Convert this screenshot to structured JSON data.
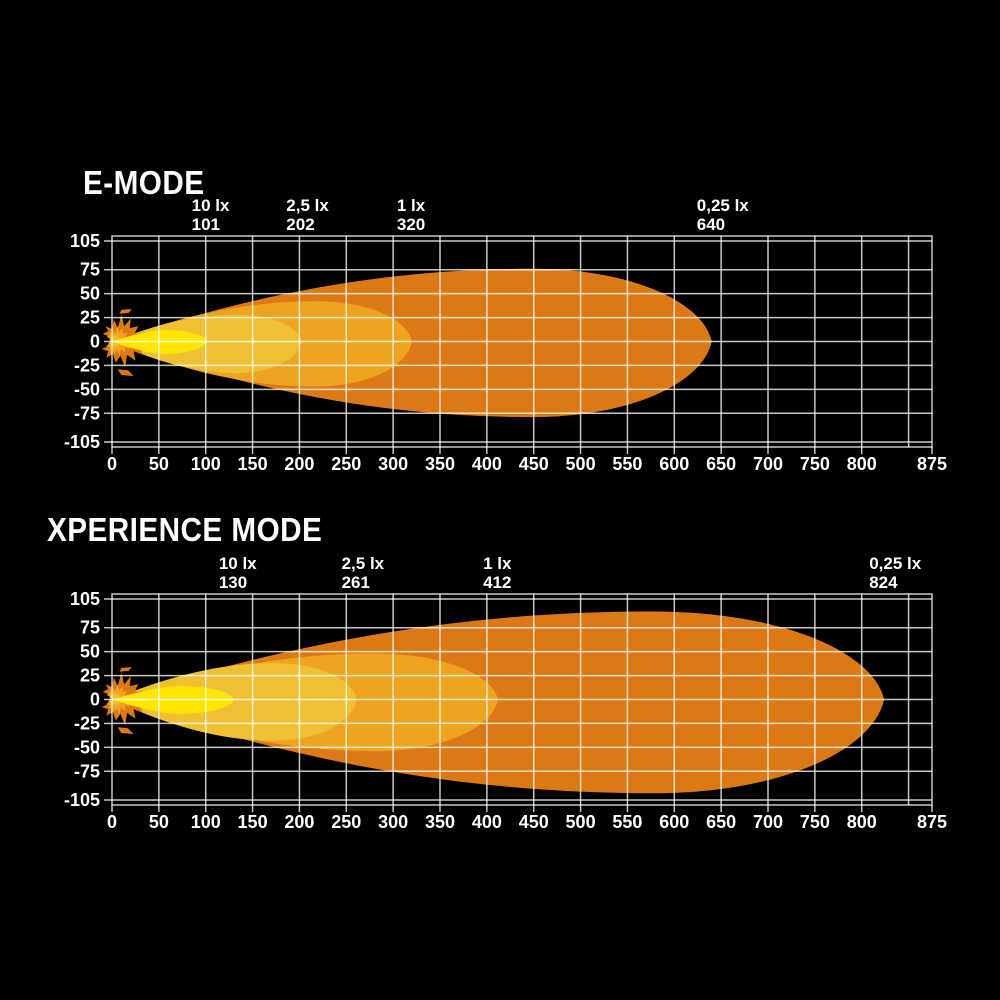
{
  "page": {
    "background": "#000000",
    "text_color": "#FFFFFF",
    "grid_color": "#FFFFFF",
    "grid_opacity": 0.78
  },
  "chart_data": [
    {
      "type": "area",
      "title": "E-MODE",
      "xlim": [
        0,
        875
      ],
      "ylim": [
        -105,
        105
      ],
      "grid": true,
      "x_ticks": [
        0,
        50,
        100,
        150,
        200,
        250,
        300,
        350,
        400,
        450,
        500,
        550,
        600,
        650,
        700,
        750,
        800,
        875
      ],
      "y_ticks": [
        105,
        75,
        50,
        25,
        0,
        -25,
        -50,
        -75,
        -105
      ],
      "annotations": [
        {
          "lux": "10 lx",
          "distance": 101
        },
        {
          "lux": "2,5 lx",
          "distance": 202
        },
        {
          "lux": "1 lx",
          "distance": 320
        },
        {
          "lux": "0,25 lx",
          "distance": 640
        }
      ],
      "beams": [
        {
          "name": "0-25lx-zone",
          "lux": "0,25 lx",
          "reach": 640,
          "half_width_top": 76,
          "half_width_bottom": 79,
          "peak": 0.7,
          "color": "#DD7914"
        },
        {
          "name": "1lx-zone",
          "lux": "1 lx",
          "reach": 320,
          "half_width_top": 42,
          "half_width_bottom": 47,
          "peak": 0.68,
          "color": "#EFA41F"
        },
        {
          "name": "2-5lx-zone",
          "lux": "2,5 lx",
          "reach": 202,
          "half_width_top": 28,
          "half_width_bottom": 33,
          "peak": 0.66,
          "color": "#EFC132"
        },
        {
          "name": "10lx-zone",
          "lux": "10 lx",
          "reach": 101,
          "half_width_top": 12,
          "half_width_bottom": 13,
          "peak": 0.55,
          "color": "#FFE500"
        }
      ],
      "light_source_colors": [
        "#DD7914",
        "#EFA41F",
        "#EFC132"
      ]
    },
    {
      "type": "area",
      "title": "XPERIENCE MODE",
      "xlim": [
        0,
        875
      ],
      "ylim": [
        -105,
        105
      ],
      "grid": true,
      "x_ticks": [
        0,
        50,
        100,
        150,
        200,
        250,
        300,
        350,
        400,
        450,
        500,
        550,
        600,
        650,
        700,
        750,
        800,
        875
      ],
      "y_ticks": [
        105,
        75,
        50,
        25,
        0,
        -25,
        -50,
        -75,
        -105
      ],
      "annotations": [
        {
          "lux": "10 lx",
          "distance": 130
        },
        {
          "lux": "2,5 lx",
          "distance": 261
        },
        {
          "lux": "1 lx",
          "distance": 412
        },
        {
          "lux": "0,25 lx",
          "distance": 824
        }
      ],
      "beams": [
        {
          "name": "0-25lx-zone",
          "lux": "0,25 lx",
          "reach": 824,
          "half_width_top": 92,
          "half_width_bottom": 98,
          "peak": 0.7,
          "color": "#DD7914"
        },
        {
          "name": "1lx-zone",
          "lux": "1 lx",
          "reach": 412,
          "half_width_top": 48,
          "half_width_bottom": 54,
          "peak": 0.68,
          "color": "#EFA41F"
        },
        {
          "name": "2-5lx-zone",
          "lux": "2,5 lx",
          "reach": 261,
          "half_width_top": 38,
          "half_width_bottom": 43,
          "peak": 0.66,
          "color": "#EFC132"
        },
        {
          "name": "10lx-zone",
          "lux": "10 lx",
          "reach": 130,
          "half_width_top": 14,
          "half_width_bottom": 15,
          "peak": 0.55,
          "color": "#FFE500"
        }
      ],
      "light_source_colors": [
        "#DD7914",
        "#EFA41F",
        "#EFC132"
      ]
    }
  ]
}
